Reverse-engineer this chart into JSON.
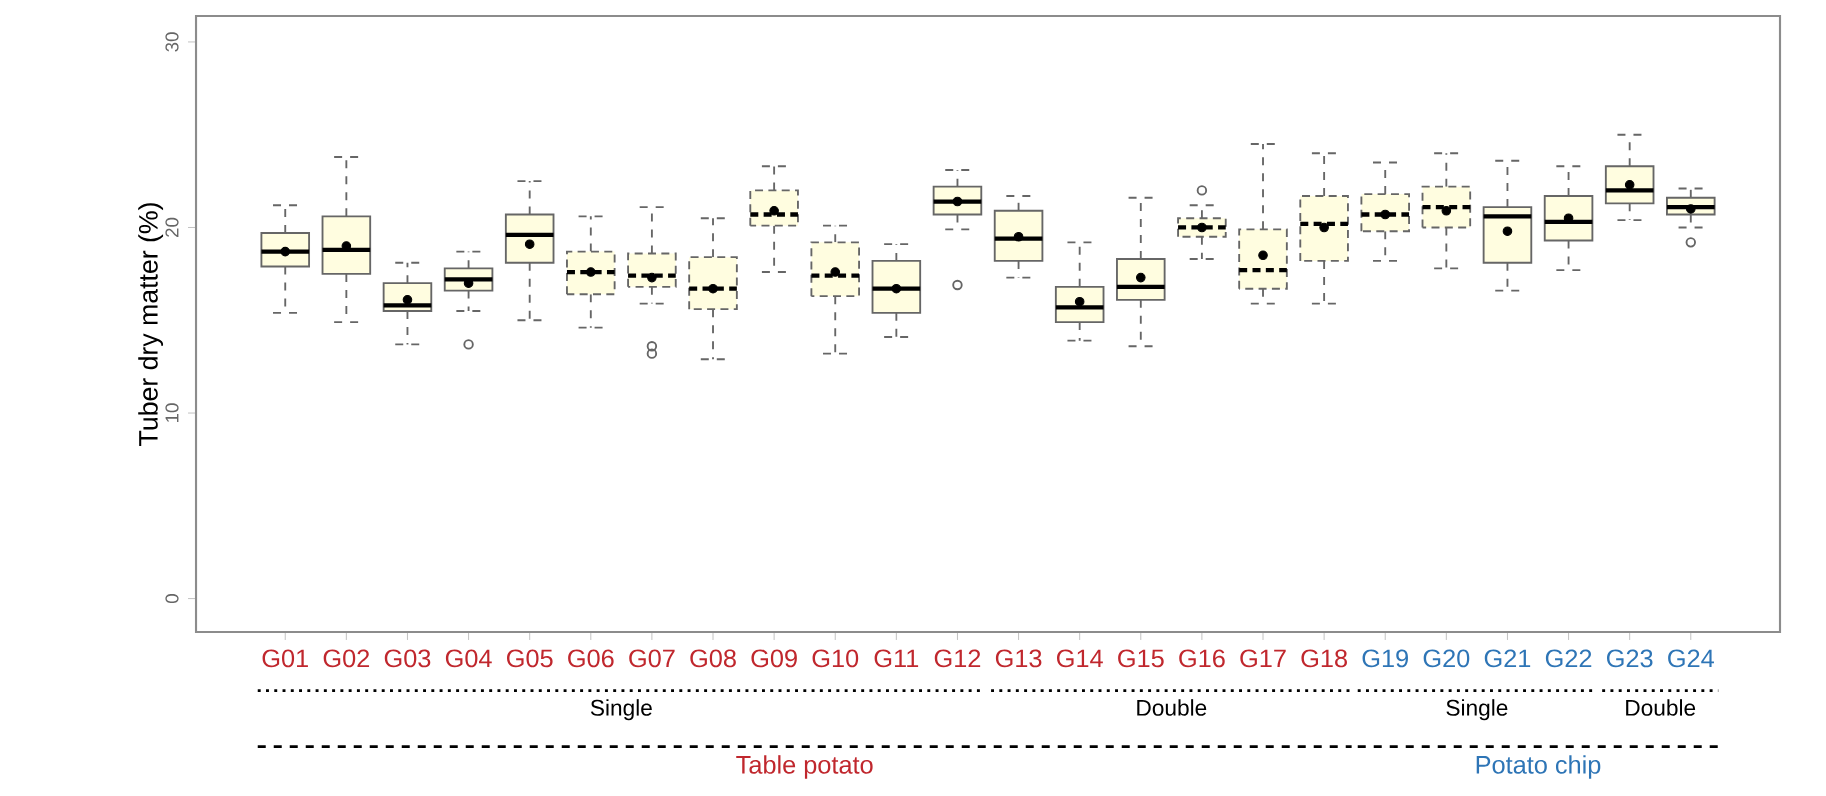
{
  "chart_data": {
    "type": "box",
    "ylabel": "Tuber dry matter (%)",
    "categories": [
      "G01",
      "G02",
      "G03",
      "G04",
      "G05",
      "G06",
      "G07",
      "G08",
      "G09",
      "G10",
      "G11",
      "G12",
      "G13",
      "G14",
      "G15",
      "G16",
      "G17",
      "G18",
      "G19",
      "G20",
      "G21",
      "G22",
      "G23",
      "G24"
    ],
    "color": "#fffde0",
    "ylim": [
      -1.8,
      31.4
    ],
    "yticks": [
      0,
      10,
      20,
      30
    ],
    "grid": false,
    "annotations": [
      "Single",
      "Double",
      "Single",
      "Double",
      "Table potato",
      "Potato chip"
    ],
    "boxes": [
      {
        "low": 15.4,
        "q1": 17.9,
        "median": 18.7,
        "q3": 19.7,
        "high": 21.2,
        "mean": 18.7
      },
      {
        "low": 14.9,
        "q1": 17.5,
        "median": 18.8,
        "q3": 20.6,
        "high": 23.8,
        "mean": 19.0
      },
      {
        "low": 13.7,
        "q1": 15.5,
        "median": 15.8,
        "q3": 17.0,
        "high": 18.1,
        "mean": 16.1
      },
      {
        "low": 15.5,
        "q1": 16.6,
        "median": 17.2,
        "q3": 17.8,
        "high": 18.7,
        "mean": 17.0,
        "outliers": [
          13.7
        ]
      },
      {
        "low": 15.0,
        "q1": 18.1,
        "median": 19.6,
        "q3": 20.7,
        "high": 22.5,
        "mean": 19.1
      },
      {
        "low": 14.6,
        "q1": 16.4,
        "median": 17.6,
        "q3": 18.7,
        "high": 20.6,
        "mean": 17.6
      },
      {
        "low": 15.9,
        "q1": 16.8,
        "median": 17.4,
        "q3": 18.6,
        "high": 21.1,
        "mean": 17.3,
        "outliers": [
          13.2,
          13.6
        ]
      },
      {
        "low": 12.9,
        "q1": 15.6,
        "median": 16.7,
        "q3": 18.4,
        "high": 20.5,
        "mean": 16.7
      },
      {
        "low": 17.6,
        "q1": 20.1,
        "median": 20.7,
        "q3": 22.0,
        "high": 23.3,
        "mean": 20.9
      },
      {
        "low": 13.2,
        "q1": 16.3,
        "median": 17.4,
        "q3": 19.2,
        "high": 20.1,
        "mean": 17.6
      },
      {
        "low": 14.1,
        "q1": 15.4,
        "median": 16.7,
        "q3": 18.2,
        "high": 19.1,
        "mean": 16.7
      },
      {
        "low": 19.9,
        "q1": 20.7,
        "median": 21.4,
        "q3": 22.2,
        "high": 23.1,
        "mean": 21.4,
        "outliers": [
          16.9
        ]
      },
      {
        "low": 17.3,
        "q1": 18.2,
        "median": 19.4,
        "q3": 20.9,
        "high": 21.7,
        "mean": 19.5
      },
      {
        "low": 13.9,
        "q1": 14.9,
        "median": 15.7,
        "q3": 16.8,
        "high": 19.2,
        "mean": 16.0
      },
      {
        "low": 13.6,
        "q1": 16.1,
        "median": 16.8,
        "q3": 18.3,
        "high": 21.6,
        "mean": 17.3
      },
      {
        "low": 18.3,
        "q1": 19.5,
        "median": 20.0,
        "q3": 20.5,
        "high": 21.2,
        "mean": 20.0,
        "outliers": [
          22.0
        ]
      },
      {
        "low": 15.9,
        "q1": 16.7,
        "median": 17.7,
        "q3": 19.9,
        "high": 24.5,
        "mean": 18.5
      },
      {
        "low": 15.9,
        "q1": 18.2,
        "median": 20.2,
        "q3": 21.7,
        "high": 24.0,
        "mean": 20.0
      },
      {
        "low": 18.2,
        "q1": 19.8,
        "median": 20.7,
        "q3": 21.8,
        "high": 23.5,
        "mean": 20.7
      },
      {
        "low": 17.8,
        "q1": 20.0,
        "median": 21.1,
        "q3": 22.2,
        "high": 24.0,
        "mean": 20.9
      },
      {
        "low": 16.6,
        "q1": 18.1,
        "median": 20.6,
        "q3": 21.1,
        "high": 23.6,
        "mean": 19.8
      },
      {
        "low": 17.7,
        "q1": 19.3,
        "median": 20.3,
        "q3": 21.7,
        "high": 23.3,
        "mean": 20.5
      },
      {
        "low": 20.4,
        "q1": 21.3,
        "median": 22.0,
        "q3": 23.3,
        "high": 25.0,
        "mean": 22.3
      },
      {
        "low": 20.0,
        "q1": 20.7,
        "median": 21.1,
        "q3": 21.6,
        "high": 22.1,
        "mean": 21.0,
        "outliers": [
          19.2
        ]
      }
    ]
  }
}
